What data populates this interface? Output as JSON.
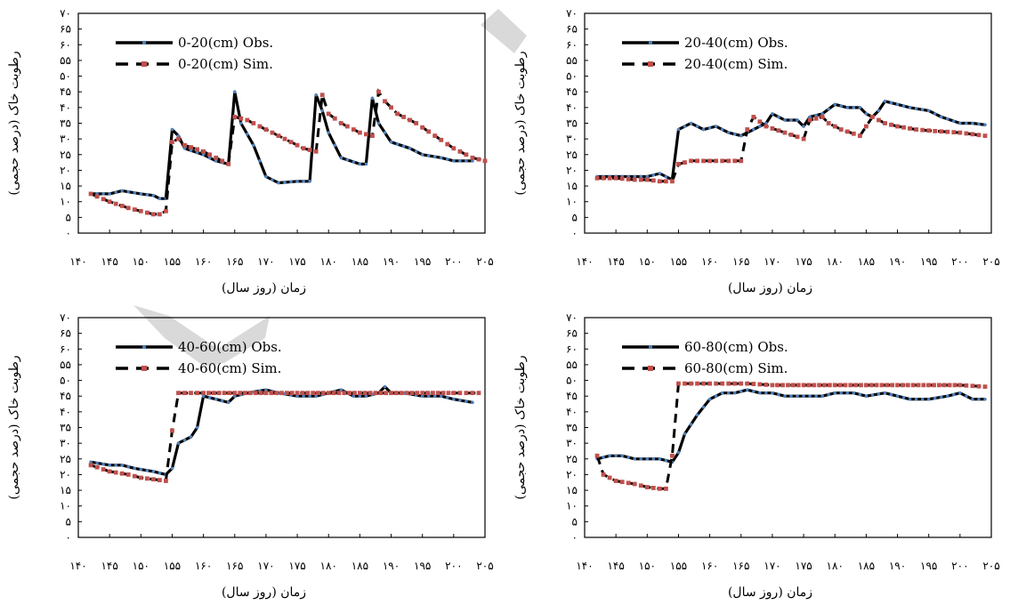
{
  "chart_data": [
    {
      "type": "line",
      "legend_placement": "top-left",
      "xlabel": "زمان (روز سال)",
      "ylabel": "رطوبت خاک (درصد حجمی)",
      "x_ticks": [
        "۱۴۰",
        "۱۴۵",
        "۱۵۰",
        "۱۵۵",
        "۱۶۰",
        "۱۶۵",
        "۱۷۰",
        "۱۷۵",
        "۱۸۰",
        "۱۸۵",
        "۱۹۰",
        "۱۹۵",
        "۲۰۰",
        "۲۰۵"
      ],
      "y_ticks": [
        "۰",
        "۵",
        "۱۰",
        "۱۵",
        "۲۰",
        "۲۵",
        "۳۰",
        "۳۵",
        "۴۰",
        "۴۵",
        "۵۰",
        "۵۵",
        "۶۰",
        "۶۵",
        "۷۰"
      ],
      "xlim": [
        140,
        205
      ],
      "ylim": [
        0,
        70
      ],
      "series": [
        {
          "name": "0-20(cm) Obs.",
          "style": "solid-dotted",
          "color": "#000000",
          "dot_color": "#4f81bd",
          "points": [
            [
              142,
              12.5
            ],
            [
              145,
              12.5
            ],
            [
              147,
              13.5
            ],
            [
              150,
              12.5
            ],
            [
              152,
              12
            ],
            [
              153,
              11
            ],
            [
              154,
              11
            ],
            [
              155,
              33
            ],
            [
              156,
              31
            ],
            [
              157,
              27
            ],
            [
              160,
              25
            ],
            [
              162,
              23
            ],
            [
              163,
              22.5
            ],
            [
              164,
              22
            ],
            [
              165,
              45
            ],
            [
              166,
              35
            ],
            [
              168,
              28
            ],
            [
              170,
              18
            ],
            [
              172,
              16
            ],
            [
              175,
              16.5
            ],
            [
              177,
              16.5
            ],
            [
              178,
              44
            ],
            [
              179,
              39
            ],
            [
              180,
              32
            ],
            [
              182,
              24
            ],
            [
              185,
              22
            ],
            [
              186,
              22
            ],
            [
              187,
              43
            ],
            [
              188,
              35
            ],
            [
              190,
              29
            ],
            [
              193,
              27
            ],
            [
              195,
              25
            ],
            [
              198,
              24
            ],
            [
              200,
              23
            ],
            [
              203,
              23
            ]
          ]
        },
        {
          "name": "0-20(cm) Sim.",
          "style": "dashed-square",
          "color": "#000000",
          "marker_color": "#c0504d",
          "points": [
            [
              142,
              12.5
            ],
            [
              145,
              10
            ],
            [
              148,
              8
            ],
            [
              150,
              7
            ],
            [
              152,
              6
            ],
            [
              153,
              6
            ],
            [
              154,
              7
            ],
            [
              155,
              29
            ],
            [
              156,
              30
            ],
            [
              157,
              28
            ],
            [
              160,
              26
            ],
            [
              162,
              24
            ],
            [
              164,
              22
            ],
            [
              165,
              37
            ],
            [
              167,
              36
            ],
            [
              170,
              33
            ],
            [
              173,
              30
            ],
            [
              176,
              27
            ],
            [
              178,
              26
            ],
            [
              179,
              44
            ],
            [
              180,
              38
            ],
            [
              182,
              35
            ],
            [
              185,
              32
            ],
            [
              187,
              31
            ],
            [
              188,
              45
            ],
            [
              189,
              42
            ],
            [
              191,
              38
            ],
            [
              194,
              35
            ],
            [
              197,
              31
            ],
            [
              200,
              27
            ],
            [
              203,
              24
            ],
            [
              205,
              23
            ]
          ]
        }
      ]
    },
    {
      "type": "line",
      "legend_placement": "top-left",
      "xlabel": "زمان (روز سال)",
      "ylabel": "رطوبت خاک (درصد حجمی)",
      "x_ticks": [
        "۱۴۰",
        "۱۴۵",
        "۱۵۰",
        "۱۵۵",
        "۱۶۰",
        "۱۶۵",
        "۱۷۰",
        "۱۷۵",
        "۱۸۰",
        "۱۸۵",
        "۱۹۰",
        "۱۹۵",
        "۲۰۰",
        "۲۰۵"
      ],
      "y_ticks": [
        "۰",
        "۵",
        "۱۰",
        "۱۵",
        "۲۰",
        "۲۵",
        "۳۰",
        "۳۵",
        "۴۰",
        "۴۵",
        "۵۰",
        "۵۵",
        "۶۰",
        "۶۵",
        "۷۰"
      ],
      "xlim": [
        140,
        205
      ],
      "ylim": [
        0,
        70
      ],
      "series": [
        {
          "name": "20-40(cm) Obs.",
          "style": "solid-dotted",
          "color": "#000000",
          "dot_color": "#4f81bd",
          "points": [
            [
              142,
              18
            ],
            [
              145,
              18
            ],
            [
              148,
              18
            ],
            [
              150,
              18
            ],
            [
              152,
              19
            ],
            [
              154,
              17
            ],
            [
              155,
              33
            ],
            [
              157,
              35
            ],
            [
              159,
              33
            ],
            [
              161,
              34
            ],
            [
              163,
              32
            ],
            [
              165,
              31
            ],
            [
              167,
              33
            ],
            [
              169,
              35
            ],
            [
              170,
              38
            ],
            [
              172,
              36
            ],
            [
              174,
              36
            ],
            [
              175,
              34
            ],
            [
              176,
              37
            ],
            [
              178,
              38
            ],
            [
              180,
              41
            ],
            [
              182,
              40
            ],
            [
              184,
              40
            ],
            [
              185,
              38
            ],
            [
              186,
              37
            ],
            [
              187,
              39
            ],
            [
              188,
              42
            ],
            [
              190,
              41
            ],
            [
              192,
              40
            ],
            [
              195,
              39
            ],
            [
              197,
              37
            ],
            [
              200,
              35
            ],
            [
              202,
              35
            ],
            [
              204,
              34.5
            ]
          ]
        },
        {
          "name": "20-40(cm) Sim.",
          "style": "dashed-square",
          "color": "#000000",
          "marker_color": "#c0504d",
          "points": [
            [
              142,
              17.5
            ],
            [
              145,
              17.5
            ],
            [
              148,
              17
            ],
            [
              150,
              17
            ],
            [
              152,
              16.5
            ],
            [
              154,
              16.5
            ],
            [
              155,
              22
            ],
            [
              157,
              23
            ],
            [
              160,
              23
            ],
            [
              163,
              23
            ],
            [
              165,
              23
            ],
            [
              166,
              33
            ],
            [
              167,
              37
            ],
            [
              169,
              34
            ],
            [
              172,
              32
            ],
            [
              175,
              30
            ],
            [
              176,
              36
            ],
            [
              178,
              37
            ],
            [
              179,
              35
            ],
            [
              181,
              33
            ],
            [
              184,
              31
            ],
            [
              186,
              37
            ],
            [
              188,
              35
            ],
            [
              190,
              34
            ],
            [
              193,
              33
            ],
            [
              196,
              32.5
            ],
            [
              200,
              32
            ],
            [
              204,
              31
            ]
          ]
        }
      ]
    },
    {
      "type": "line",
      "legend_placement": "top-left",
      "xlabel": "زمان (روز سال)",
      "ylabel": "رطوبت خاک (درصد حجمی)",
      "x_ticks": [
        "۱۴۰",
        "۱۴۵",
        "۱۵۰",
        "۱۵۵",
        "۱۶۰",
        "۱۶۵",
        "۱۷۰",
        "۱۷۵",
        "۱۸۰",
        "۱۸۵",
        "۱۹۰",
        "۱۹۵",
        "۲۰۰",
        "۲۰۵"
      ],
      "y_ticks": [
        "۰",
        "۵",
        "۱۰",
        "۱۵",
        "۲۰",
        "۲۵",
        "۳۰",
        "۳۵",
        "۴۰",
        "۴۵",
        "۵۰",
        "۵۵",
        "۶۰",
        "۶۵",
        "۷۰"
      ],
      "xlim": [
        140,
        205
      ],
      "ylim": [
        0,
        70
      ],
      "series": [
        {
          "name": "40-60(cm) Obs.",
          "style": "solid-dotted",
          "color": "#000000",
          "dot_color": "#4f81bd",
          "points": [
            [
              142,
              24
            ],
            [
              145,
              23
            ],
            [
              147,
              23
            ],
            [
              149,
              22
            ],
            [
              152,
              21
            ],
            [
              154,
              20
            ],
            [
              155,
              22
            ],
            [
              156,
              30
            ],
            [
              158,
              32
            ],
            [
              159,
              35
            ],
            [
              160,
              45
            ],
            [
              162,
              44
            ],
            [
              164,
              43
            ],
            [
              165,
              45
            ],
            [
              167,
              46
            ],
            [
              170,
              47
            ],
            [
              172,
              46
            ],
            [
              175,
              45
            ],
            [
              178,
              45
            ],
            [
              180,
              46
            ],
            [
              182,
              47
            ],
            [
              184,
              45
            ],
            [
              186,
              45
            ],
            [
              188,
              46
            ],
            [
              189,
              48
            ],
            [
              190,
              46
            ],
            [
              192,
              46
            ],
            [
              195,
              45
            ],
            [
              198,
              45
            ],
            [
              200,
              44
            ],
            [
              203,
              43
            ]
          ]
        },
        {
          "name": "40-60(cm) Sim.",
          "style": "dashed-square",
          "color": "#000000",
          "marker_color": "#c0504d",
          "points": [
            [
              142,
              23
            ],
            [
              145,
              21
            ],
            [
              148,
              20
            ],
            [
              150,
              19
            ],
            [
              152,
              18.5
            ],
            [
              154,
              18
            ],
            [
              155,
              34
            ],
            [
              156,
              46
            ],
            [
              158,
              46
            ],
            [
              160,
              46
            ],
            [
              165,
              46
            ],
            [
              170,
              46
            ],
            [
              175,
              46
            ],
            [
              180,
              46
            ],
            [
              185,
              46
            ],
            [
              190,
              46
            ],
            [
              195,
              46
            ],
            [
              200,
              46
            ],
            [
              204,
              46
            ]
          ]
        }
      ]
    },
    {
      "type": "line",
      "legend_placement": "top-left",
      "xlabel": "زمان (روز سال)",
      "ylabel": "رطوبت خاک (درصد حجمی)",
      "x_ticks": [
        "۱۴۰",
        "۱۴۵",
        "۱۵۰",
        "۱۵۵",
        "۱۶۰",
        "۱۶۵",
        "۱۷۰",
        "۱۷۵",
        "۱۸۰",
        "۱۸۵",
        "۱۹۰",
        "۱۹۵",
        "۲۰۰",
        "۲۰۵"
      ],
      "y_ticks": [
        "۰",
        "۵",
        "۱۰",
        "۱۵",
        "۲۰",
        "۲۵",
        "۳۰",
        "۳۵",
        "۴۰",
        "۴۵",
        "۵۰",
        "۵۵",
        "۶۰",
        "۶۵",
        "۷۰"
      ],
      "xlim": [
        140,
        205
      ],
      "ylim": [
        0,
        70
      ],
      "series": [
        {
          "name": "60-80(cm) Obs.",
          "style": "solid-dotted",
          "color": "#000000",
          "dot_color": "#4f81bd",
          "points": [
            [
              142,
              25
            ],
            [
              144,
              26
            ],
            [
              146,
              26
            ],
            [
              148,
              25
            ],
            [
              150,
              25
            ],
            [
              152,
              25
            ],
            [
              154,
              24
            ],
            [
              155,
              27
            ],
            [
              156,
              33
            ],
            [
              158,
              39
            ],
            [
              160,
              44
            ],
            [
              162,
              46
            ],
            [
              164,
              46
            ],
            [
              166,
              47
            ],
            [
              168,
              46
            ],
            [
              170,
              46
            ],
            [
              172,
              45
            ],
            [
              175,
              45
            ],
            [
              178,
              45
            ],
            [
              180,
              46
            ],
            [
              183,
              46
            ],
            [
              185,
              45
            ],
            [
              188,
              46
            ],
            [
              190,
              45
            ],
            [
              192,
              44
            ],
            [
              195,
              44
            ],
            [
              198,
              45
            ],
            [
              200,
              46
            ],
            [
              202,
              44
            ],
            [
              204,
              44
            ]
          ]
        },
        {
          "name": "60-80(cm) Sim.",
          "style": "dashed-square",
          "color": "#000000",
          "marker_color": "#c0504d",
          "points": [
            [
              142,
              26
            ],
            [
              143,
              20
            ],
            [
              145,
              18
            ],
            [
              148,
              17
            ],
            [
              150,
              16
            ],
            [
              152,
              15.5
            ],
            [
              153,
              15.5
            ],
            [
              154,
              26
            ],
            [
              155,
              49
            ],
            [
              158,
              49
            ],
            [
              162,
              49
            ],
            [
              166,
              49
            ],
            [
              170,
              48.5
            ],
            [
              175,
              48.5
            ],
            [
              180,
              48.5
            ],
            [
              185,
              48.5
            ],
            [
              190,
              48.5
            ],
            [
              195,
              48.5
            ],
            [
              200,
              48.5
            ],
            [
              204,
              48
            ]
          ]
        }
      ]
    }
  ],
  "colors": {
    "obs_line": "#000000",
    "obs_dots": "#4f81bd",
    "sim_markers": "#c0504d",
    "watermark": "#d9d9d9"
  }
}
